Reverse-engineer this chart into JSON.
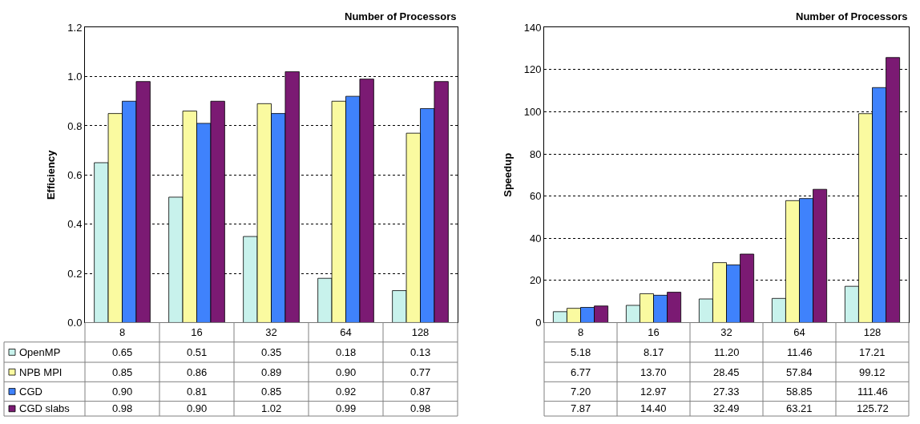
{
  "chart_data": [
    {
      "type": "bar",
      "xlabel": "Number of Processors",
      "ylabel": "Efficiency",
      "categories": [
        "8",
        "16",
        "32",
        "64",
        "128"
      ],
      "series": [
        {
          "name": "OpenMP",
          "color": "#c8f2ec",
          "values": [
            0.65,
            0.51,
            0.35,
            0.18,
            0.13
          ],
          "value_labels": [
            "0.65",
            "0.51",
            "0.35",
            "0.18",
            "0.13"
          ]
        },
        {
          "name": "NPB MPI",
          "color": "#fafaa0",
          "values": [
            0.85,
            0.86,
            0.89,
            0.9,
            0.77
          ],
          "value_labels": [
            "0.85",
            "0.86",
            "0.89",
            "0.90",
            "0.77"
          ]
        },
        {
          "name": "CGD",
          "color": "#3f82fc",
          "values": [
            0.9,
            0.81,
            0.85,
            0.92,
            0.87
          ],
          "value_labels": [
            "0.90",
            "0.81",
            "0.85",
            "0.92",
            "0.87"
          ]
        },
        {
          "name": "CGD slabs",
          "color": "#7b1a73",
          "values": [
            0.98,
            0.9,
            1.02,
            0.99,
            0.98
          ],
          "value_labels": [
            "0.98",
            "0.90",
            "1.02",
            "0.99",
            "0.98"
          ]
        }
      ],
      "ylim": [
        0,
        1.2
      ],
      "yticks": [
        {
          "value": 0,
          "label": "0.0"
        },
        0.2,
        0.4,
        0.6,
        0.8,
        {
          "value": 1,
          "label": "1.0"
        },
        1.2
      ],
      "grid": "y",
      "legend": "left"
    },
    {
      "type": "bar",
      "xlabel": "Number of Processors",
      "ylabel": "Speedup",
      "categories": [
        "8",
        "16",
        "32",
        "64",
        "128"
      ],
      "series": [
        {
          "color": "#c8f2ec",
          "values": [
            5.18,
            8.17,
            11.2,
            11.46,
            17.21
          ],
          "value_labels": [
            "5.18",
            "8.17",
            "11.20",
            "11.46",
            "17.21"
          ]
        },
        {
          "color": "#fafaa0",
          "values": [
            6.77,
            13.7,
            28.45,
            57.84,
            99.12
          ],
          "value_labels": [
            "6.77",
            "13.70",
            "28.45",
            "57.84",
            "99.12"
          ]
        },
        {
          "color": "#3f82fc",
          "values": [
            7.2,
            12.97,
            27.33,
            58.85,
            111.46
          ],
          "value_labels": [
            "7.20",
            "12.97",
            "27.33",
            "58.85",
            "111.46"
          ]
        },
        {
          "color": "#7b1a73",
          "values": [
            7.87,
            14.4,
            32.49,
            63.21,
            125.72
          ],
          "value_labels": [
            "7.87",
            "14.40",
            "32.49",
            "63.21",
            "125.72"
          ]
        }
      ],
      "ylim": [
        0,
        140
      ],
      "yticks": [
        0,
        20,
        40,
        60,
        80,
        100,
        120,
        140
      ],
      "grid": "y"
    }
  ]
}
